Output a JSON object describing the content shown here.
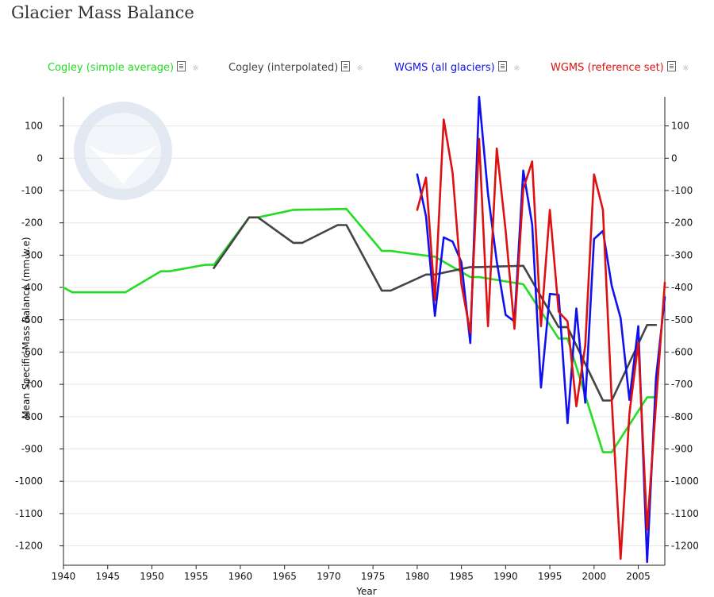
{
  "header": {
    "title": "Glacier Mass Balance"
  },
  "legend": [
    {
      "label": "Cogley (simple average)",
      "color": "#22dd22"
    },
    {
      "label": "Cogley (interpolated)",
      "color": "#444444"
    },
    {
      "label": "WGMS (all glaciers)",
      "color": "#1111ee"
    },
    {
      "label": "WGMS (reference set)",
      "color": "#dd1111"
    }
  ],
  "icons": {
    "export": "document-icon",
    "settings": "gear-icon"
  },
  "chart_data": {
    "type": "line",
    "title": "Glacier Mass Balance",
    "xlabel": "Year",
    "ylabel": "Mean Specific Mass Balance (mm w.e)",
    "xlim": [
      1940,
      2008
    ],
    "ylim": [
      -1260,
      190
    ],
    "xticks": [
      1940,
      1945,
      1950,
      1955,
      1960,
      1965,
      1970,
      1975,
      1980,
      1985,
      1990,
      1995,
      2000,
      2005
    ],
    "yticks": [
      100,
      0,
      -100,
      -200,
      -300,
      -400,
      -500,
      -600,
      -700,
      -800,
      -900,
      -1000,
      -1100,
      -1200
    ],
    "grid": "horizontal",
    "legend_position": "top",
    "series": [
      {
        "name": "Cogley (simple average)",
        "color": "#22dd22",
        "points": [
          [
            1940,
            -400
          ],
          [
            1941,
            -415
          ],
          [
            1944,
            -415
          ],
          [
            1947,
            -415
          ],
          [
            1951,
            -350
          ],
          [
            1952,
            -350
          ],
          [
            1956,
            -330
          ],
          [
            1957,
            -330
          ],
          [
            1961,
            -183
          ],
          [
            1962,
            -183
          ],
          [
            1966,
            -160
          ],
          [
            1972,
            -157
          ],
          [
            1976,
            -287
          ],
          [
            1977,
            -287
          ],
          [
            1982,
            -305
          ],
          [
            1986,
            -368
          ],
          [
            1987,
            -368
          ],
          [
            1992,
            -390
          ],
          [
            1996,
            -558
          ],
          [
            1997,
            -558
          ],
          [
            2001,
            -910
          ],
          [
            2002,
            -910
          ],
          [
            2006,
            -740
          ],
          [
            2007,
            -740
          ]
        ]
      },
      {
        "name": "Cogley (interpolated)",
        "color": "#444444",
        "points": [
          [
            1957,
            -340
          ],
          [
            1961,
            -183
          ],
          [
            1962,
            -183
          ],
          [
            1966,
            -262
          ],
          [
            1967,
            -262
          ],
          [
            1971,
            -207
          ],
          [
            1972,
            -207
          ],
          [
            1976,
            -410
          ],
          [
            1977,
            -410
          ],
          [
            1981,
            -360
          ],
          [
            1982,
            -360
          ],
          [
            1986,
            -337
          ],
          [
            1987,
            -337
          ],
          [
            1992,
            -333
          ],
          [
            1996,
            -523
          ],
          [
            1997,
            -523
          ],
          [
            2001,
            -750
          ],
          [
            2002,
            -750
          ],
          [
            2006,
            -516
          ],
          [
            2007,
            -516
          ]
        ]
      },
      {
        "name": "WGMS (all glaciers)",
        "color": "#1111ee",
        "points": [
          [
            1980,
            -50
          ],
          [
            1981,
            -180
          ],
          [
            1982,
            -488
          ],
          [
            1983,
            -245
          ],
          [
            1984,
            -258
          ],
          [
            1985,
            -322
          ],
          [
            1986,
            -572
          ],
          [
            1987,
            190
          ],
          [
            1988,
            -110
          ],
          [
            1989,
            -320
          ],
          [
            1990,
            -485
          ],
          [
            1991,
            -505
          ],
          [
            1992,
            -38
          ],
          [
            1993,
            -205
          ],
          [
            1994,
            -710
          ],
          [
            1995,
            -420
          ],
          [
            1996,
            -423
          ],
          [
            1997,
            -820
          ],
          [
            1998,
            -465
          ],
          [
            1999,
            -757
          ],
          [
            2000,
            -250
          ],
          [
            2001,
            -225
          ],
          [
            2002,
            -395
          ],
          [
            2003,
            -495
          ],
          [
            2004,
            -748
          ],
          [
            2005,
            -520
          ],
          [
            2006,
            -1250
          ],
          [
            2007,
            -680
          ],
          [
            2008,
            -430
          ]
        ]
      },
      {
        "name": "WGMS (reference set)",
        "color": "#dd1111",
        "points": [
          [
            1980,
            -160
          ],
          [
            1981,
            -60
          ],
          [
            1982,
            -440
          ],
          [
            1983,
            120
          ],
          [
            1984,
            -45
          ],
          [
            1985,
            -390
          ],
          [
            1986,
            -540
          ],
          [
            1987,
            60
          ],
          [
            1988,
            -520
          ],
          [
            1989,
            30
          ],
          [
            1990,
            -225
          ],
          [
            1991,
            -528
          ],
          [
            1992,
            -95
          ],
          [
            1993,
            -10
          ],
          [
            1994,
            -520
          ],
          [
            1995,
            -160
          ],
          [
            1996,
            -475
          ],
          [
            1997,
            -505
          ],
          [
            1998,
            -768
          ],
          [
            1999,
            -580
          ],
          [
            2000,
            -50
          ],
          [
            2001,
            -160
          ],
          [
            2002,
            -750
          ],
          [
            2003,
            -1240
          ],
          [
            2004,
            -790
          ],
          [
            2005,
            -570
          ],
          [
            2006,
            -1150
          ],
          [
            2007,
            -760
          ],
          [
            2008,
            -385
          ]
        ]
      }
    ]
  }
}
